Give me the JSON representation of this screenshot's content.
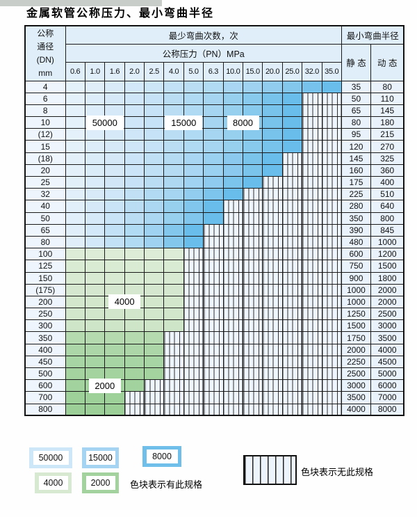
{
  "title": "金属软管公称压力、最小弯曲半径",
  "table": {
    "header": {
      "dn_lines": [
        "公称",
        "通径",
        "(DN)",
        "mm"
      ],
      "bend_cycles": "最少弯曲次数，次",
      "pressure": "公称压力（PN）MPa",
      "min_radius": "最小弯曲半径",
      "static_label": "静 态",
      "dynamic_label": "动 态",
      "pressures": [
        "0.6",
        "1.0",
        "1.6",
        "2.0",
        "2.5",
        "4.0",
        "5.0",
        "6.3",
        "10.0",
        "15.0",
        "20.0",
        "25.0",
        "32.0",
        "35.0"
      ]
    },
    "rows": [
      {
        "dn": "4",
        "max_pn": "35.0",
        "colored": 14,
        "family": "blue",
        "static": "35",
        "dynamic": "80"
      },
      {
        "dn": "6",
        "max_pn": "25.0",
        "colored": 12,
        "family": "blue",
        "static": "50",
        "dynamic": "110"
      },
      {
        "dn": "8",
        "max_pn": "25.0",
        "colored": 12,
        "family": "blue",
        "static": "65",
        "dynamic": "145"
      },
      {
        "dn": "10",
        "max_pn": "25.0",
        "colored": 12,
        "family": "blue",
        "static": "80",
        "dynamic": "180"
      },
      {
        "dn": "(12)",
        "max_pn": "25.0",
        "colored": 12,
        "family": "blue",
        "static": "95",
        "dynamic": "215"
      },
      {
        "dn": "15",
        "max_pn": "25.0",
        "colored": 12,
        "family": "blue",
        "static": "120",
        "dynamic": "270"
      },
      {
        "dn": "(18)",
        "max_pn": "20.0",
        "colored": 11,
        "family": "blue",
        "static": "145",
        "dynamic": "325"
      },
      {
        "dn": "20",
        "max_pn": "20.0",
        "colored": 11,
        "family": "blue",
        "static": "160",
        "dynamic": "360"
      },
      {
        "dn": "25",
        "max_pn": "15.0",
        "colored": 10,
        "family": "blue",
        "static": "175",
        "dynamic": "400"
      },
      {
        "dn": "32",
        "max_pn": "10.0",
        "colored": 9,
        "family": "blue",
        "static": "225",
        "dynamic": "510"
      },
      {
        "dn": "40",
        "max_pn": "6.3",
        "colored": 8,
        "family": "blue",
        "static": "280",
        "dynamic": "640"
      },
      {
        "dn": "50",
        "max_pn": "6.3",
        "colored": 8,
        "family": "blue",
        "static": "350",
        "dynamic": "800"
      },
      {
        "dn": "65",
        "max_pn": "5.0",
        "colored": 7,
        "family": "blue",
        "static": "390",
        "dynamic": "845"
      },
      {
        "dn": "80",
        "max_pn": "5.0",
        "colored": 7,
        "family": "blue",
        "static": "480",
        "dynamic": "1000"
      },
      {
        "dn": "100",
        "max_pn": "4.0",
        "colored": 6,
        "family": "green",
        "static": "600",
        "dynamic": "1200"
      },
      {
        "dn": "125",
        "max_pn": "4.0",
        "colored": 6,
        "family": "green",
        "static": "750",
        "dynamic": "1500"
      },
      {
        "dn": "150",
        "max_pn": "4.0",
        "colored": 6,
        "family": "green",
        "static": "900",
        "dynamic": "1800"
      },
      {
        "dn": "(175)",
        "max_pn": "4.0",
        "colored": 6,
        "family": "green",
        "static": "1000",
        "dynamic": "2000"
      },
      {
        "dn": "200",
        "max_pn": "4.0",
        "colored": 6,
        "family": "green",
        "static": "1000",
        "dynamic": "2000"
      },
      {
        "dn": "250",
        "max_pn": "4.0",
        "colored": 6,
        "family": "green",
        "static": "1250",
        "dynamic": "2500"
      },
      {
        "dn": "300",
        "max_pn": "4.0",
        "colored": 6,
        "family": "green",
        "static": "1500",
        "dynamic": "3000"
      },
      {
        "dn": "350",
        "max_pn": "2.5",
        "colored": 5,
        "family": "green",
        "static": "1750",
        "dynamic": "3500"
      },
      {
        "dn": "400",
        "max_pn": "2.5",
        "colored": 5,
        "family": "green",
        "static": "2000",
        "dynamic": "4000"
      },
      {
        "dn": "450",
        "max_pn": "2.5",
        "colored": 5,
        "family": "green",
        "static": "2250",
        "dynamic": "4500"
      },
      {
        "dn": "500",
        "max_pn": "2.5",
        "colored": 5,
        "family": "green",
        "static": "2500",
        "dynamic": "5000"
      },
      {
        "dn": "600",
        "max_pn": "2.0",
        "colored": 4,
        "family": "green",
        "static": "3000",
        "dynamic": "6000"
      },
      {
        "dn": "700",
        "max_pn": "1.6",
        "colored": 3,
        "family": "green",
        "static": "3500",
        "dynamic": "7000"
      },
      {
        "dn": "800",
        "max_pn": "1.6",
        "colored": 3,
        "family": "green",
        "static": "4000",
        "dynamic": "8000"
      }
    ]
  },
  "overlays": [
    {
      "label": "50000",
      "row_dn": "10",
      "col_start": 1,
      "col_end": 2
    },
    {
      "label": "15000",
      "row_dn": "10",
      "col_start": 5,
      "col_end": 6
    },
    {
      "label": "8000",
      "row_dn": "10",
      "col_start": 8,
      "col_end": 9
    },
    {
      "label": "4000",
      "row_dn": "200",
      "col_start": 2,
      "col_end": 3
    },
    {
      "label": "2000",
      "row_dn": "600",
      "col_start": 1,
      "col_end": 2
    }
  ],
  "legend": {
    "items": [
      {
        "label": "50000",
        "color": "#cde6f8"
      },
      {
        "label": "15000",
        "color": "#a5d3f2"
      },
      {
        "label": "8000",
        "color": "#6fbfea"
      },
      {
        "label": "4000",
        "color": "#d7ead1"
      },
      {
        "label": "2000",
        "color": "#a3d29e"
      }
    ],
    "has_spec_text": "色块表示有此规格",
    "no_spec_text": "色块表示无此规格"
  }
}
